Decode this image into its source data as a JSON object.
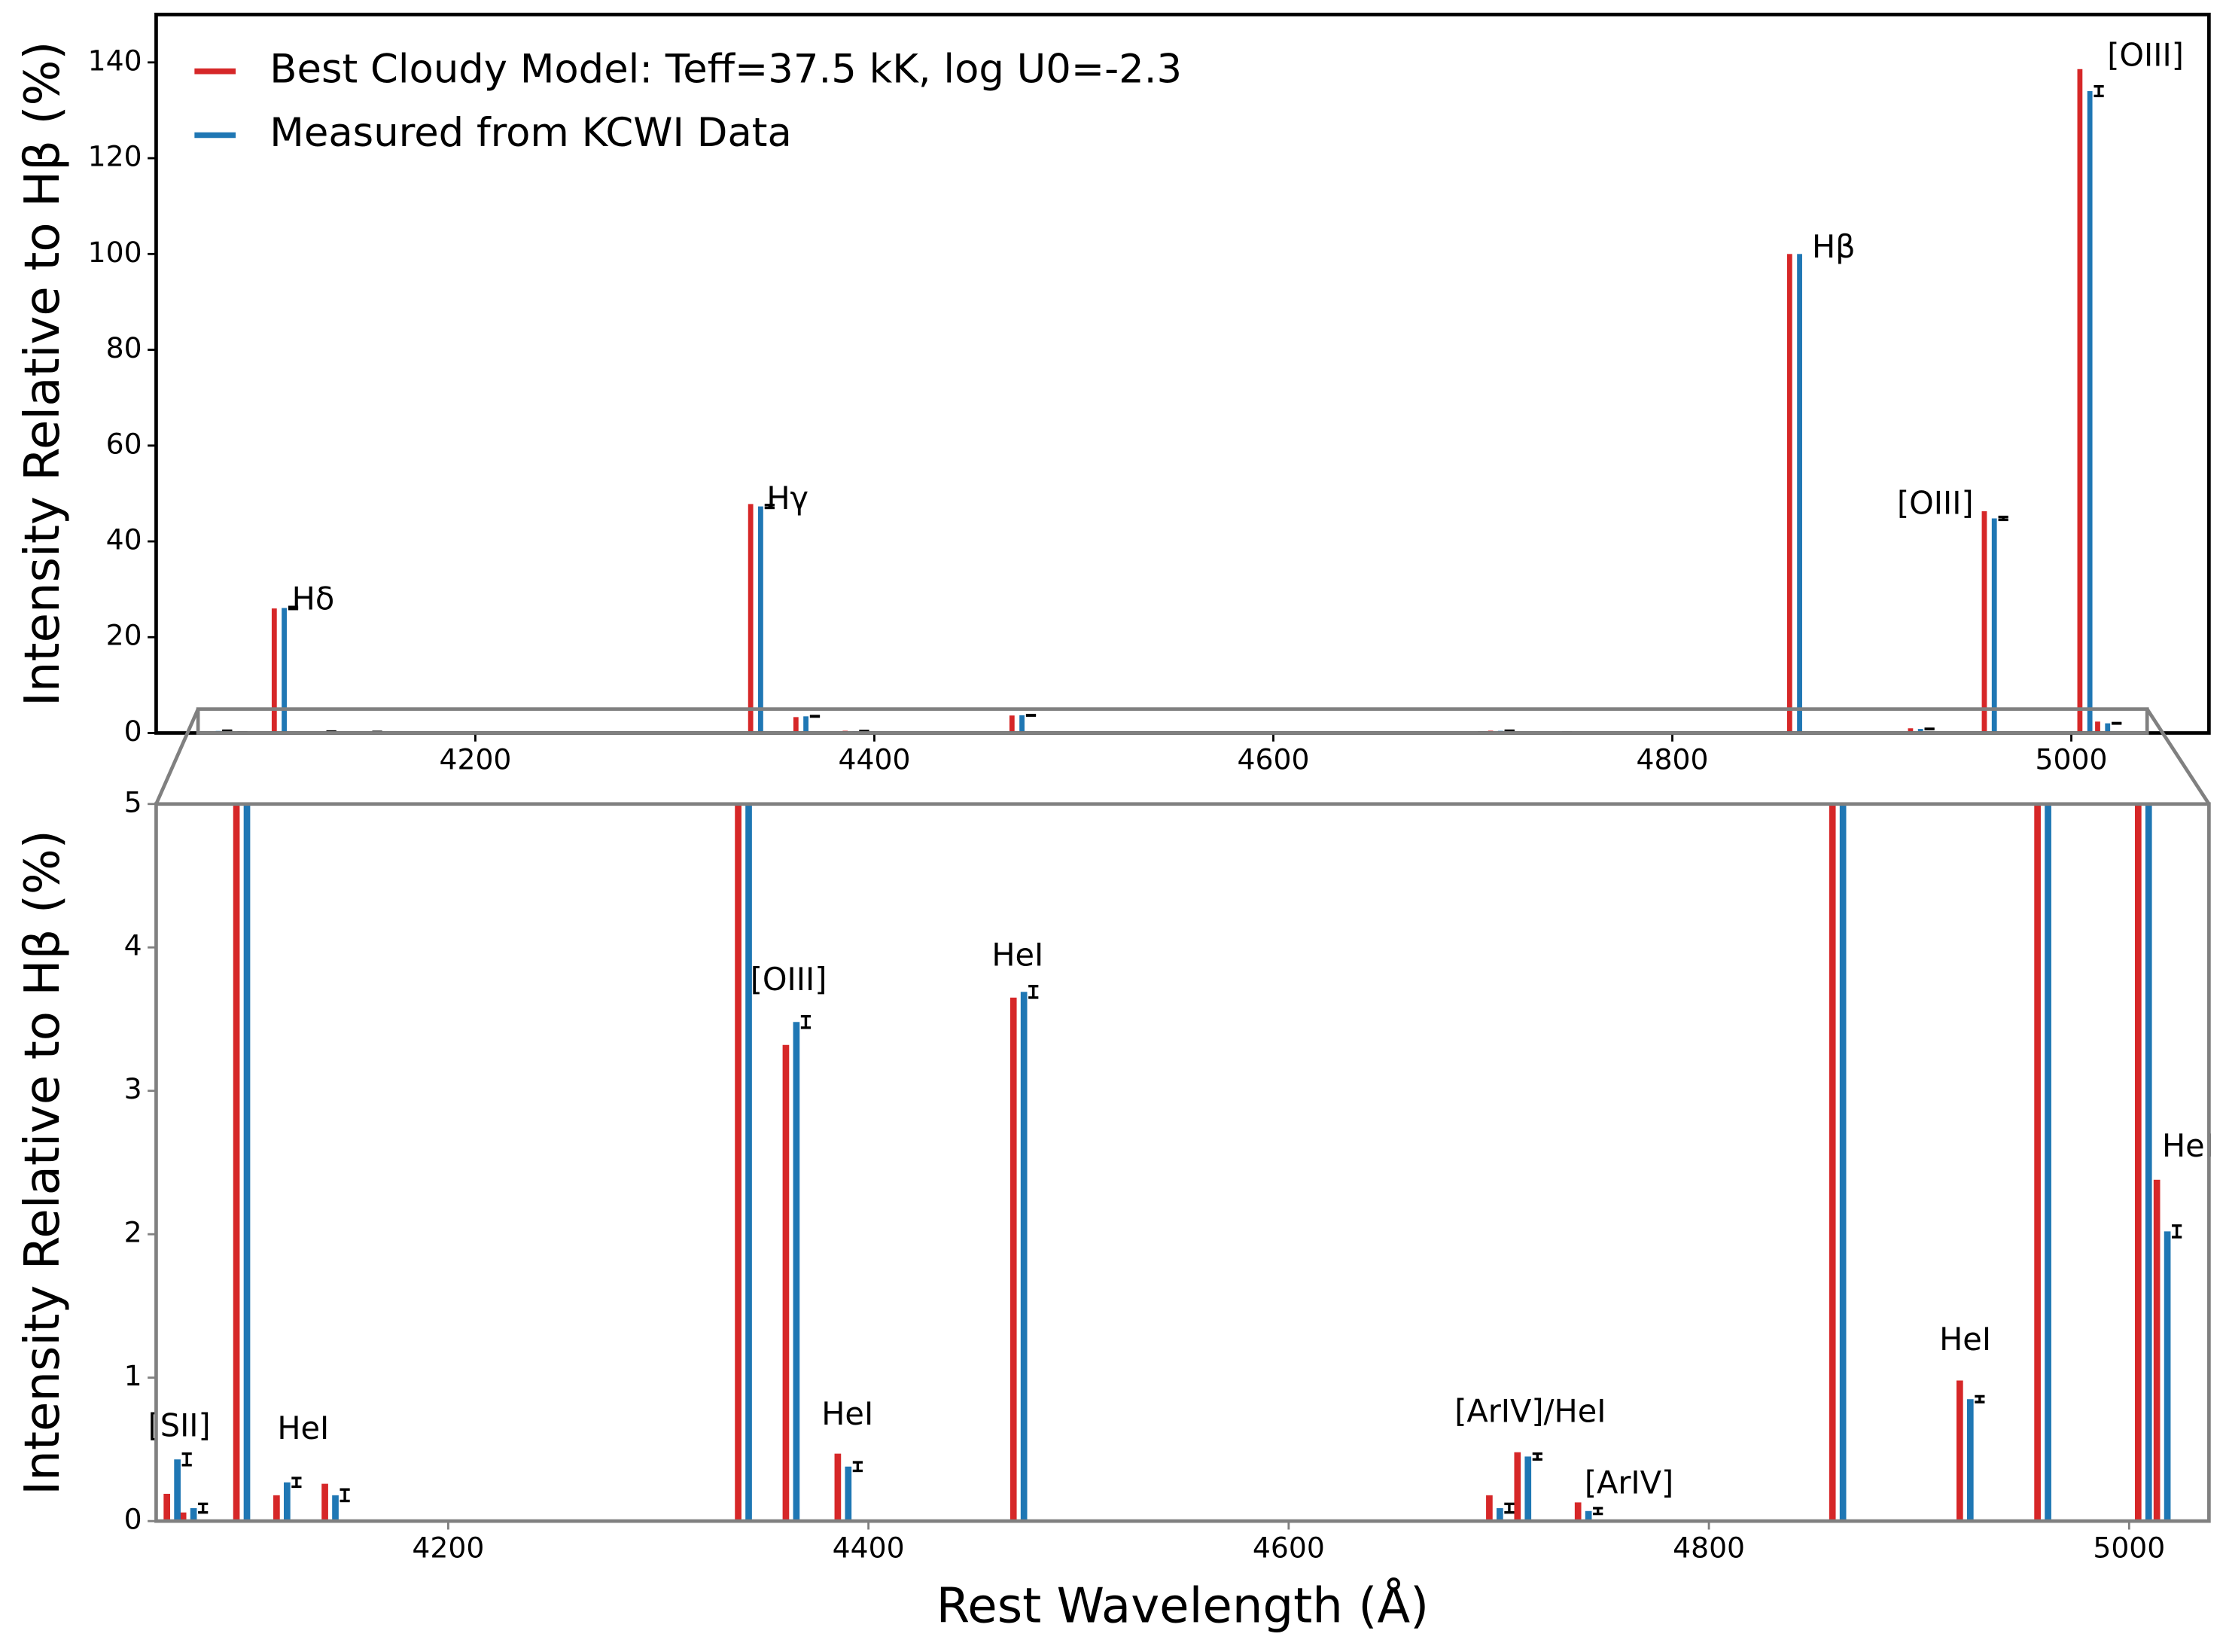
{
  "chart_data": {
    "type": "bar",
    "xlabel": "Rest Wavelength (Å)",
    "x": [
      4068.6,
      4076.3,
      4101.7,
      4120.8,
      4143.8,
      4340.5,
      4363.2,
      4387.9,
      4471.5,
      4698,
      4711.4,
      4740.2,
      4861.3,
      4921.9,
      4958.9,
      5006.8,
      5015.7
    ],
    "series": [
      {
        "name": "Best Cloudy Model: Teff=37.5 kK, log U0=-2.3",
        "color": "#d62728",
        "values": [
          0.19,
          0.06,
          26.0,
          0.18,
          0.26,
          47.8,
          3.32,
          0.47,
          3.65,
          0.18,
          0.48,
          0.13,
          100,
          0.98,
          46.3,
          138.6,
          2.38
        ]
      },
      {
        "name": "Measured from KCWI Data",
        "color": "#1f77b4",
        "values": [
          0.43,
          0.09,
          26.1,
          0.27,
          0.18,
          47.3,
          3.48,
          0.38,
          3.69,
          0.09,
          0.45,
          0.07,
          100,
          0.85,
          44.8,
          134.0,
          2.02
        ],
        "errors": [
          0.04,
          0.03,
          0.2,
          0.03,
          0.04,
          0.3,
          0.04,
          0.03,
          0.04,
          0.03,
          0.02,
          0.02,
          null,
          0.02,
          0.3,
          1.0,
          0.04
        ]
      }
    ],
    "panels": [
      {
        "ylabel": "Intensity Relative to Hβ (%)",
        "xlim": [
          4040,
          5069
        ],
        "ylim": [
          0,
          150
        ],
        "xticks": [
          4200,
          4400,
          4600,
          4800,
          5000
        ],
        "yticks": [
          0,
          20,
          40,
          60,
          80,
          100,
          120,
          140
        ],
        "legend": "upper left",
        "annotations": [
          "Hδ",
          "Hγ",
          "Hβ",
          "[OIII]",
          "[OIII]"
        ]
      },
      {
        "ylabel": "Intensity Relative to Hβ (%)",
        "xlim": [
          4061,
          5038
        ],
        "ylim": [
          0,
          5
        ],
        "xticks": [
          4200,
          4400,
          4600,
          4800,
          5000
        ],
        "yticks": [
          0,
          1,
          2,
          3,
          4,
          5
        ],
        "annotations": [
          "[SII]",
          "HeI",
          "[OIII]",
          "HeI",
          "HeI",
          "[ArIV]/HeI",
          "[ArIV]",
          "HeI",
          "HeI"
        ]
      }
    ]
  }
}
